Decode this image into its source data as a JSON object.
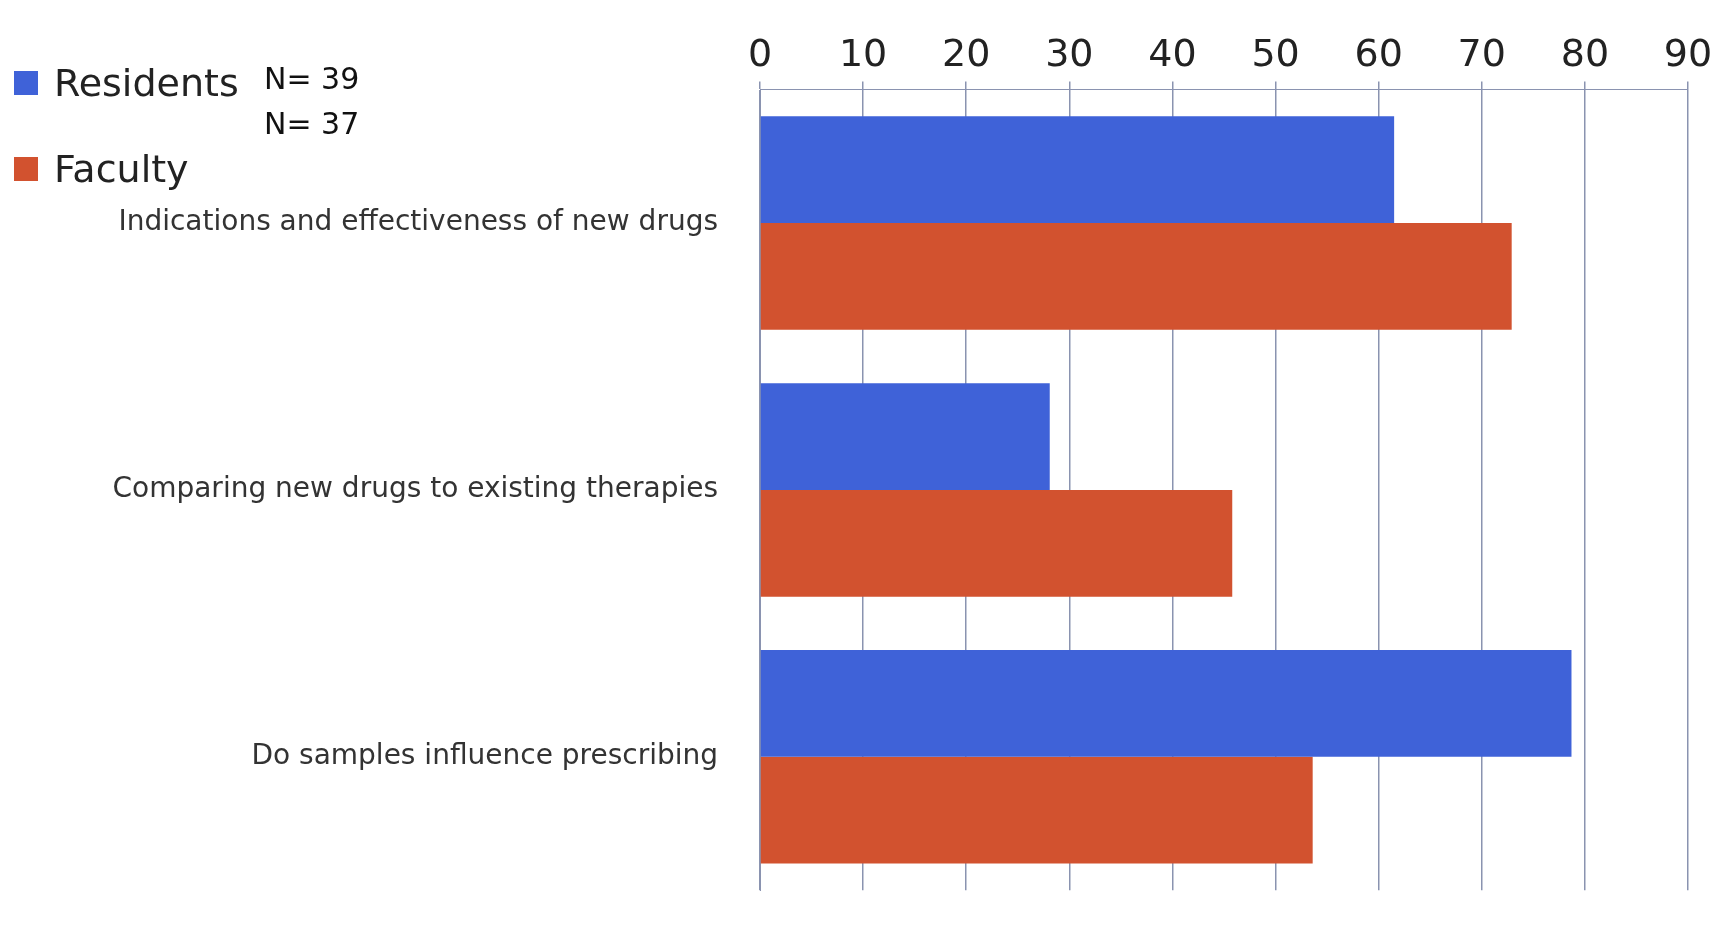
{
  "chart_data": {
    "type": "bar",
    "orientation": "horizontal",
    "categories": [
      "Indications and effectiveness of new drugs",
      "Comparing new drugs to existing therapies",
      "Do samples influence prescribing"
    ],
    "series": [
      {
        "name": "Residents",
        "color": "#3f62d8",
        "values": [
          61.5,
          28.1,
          78.7
        ]
      },
      {
        "name": "Faculty",
        "color": "#d2522f",
        "values": [
          72.9,
          45.8,
          53.6
        ]
      }
    ],
    "xlim": [
      0,
      90
    ],
    "xticks": [
      0,
      10,
      20,
      30,
      40,
      50,
      60,
      70,
      80,
      90
    ],
    "grid": "x",
    "legend": "top left",
    "annotations": [
      "N= 39",
      "N= 37"
    ]
  }
}
